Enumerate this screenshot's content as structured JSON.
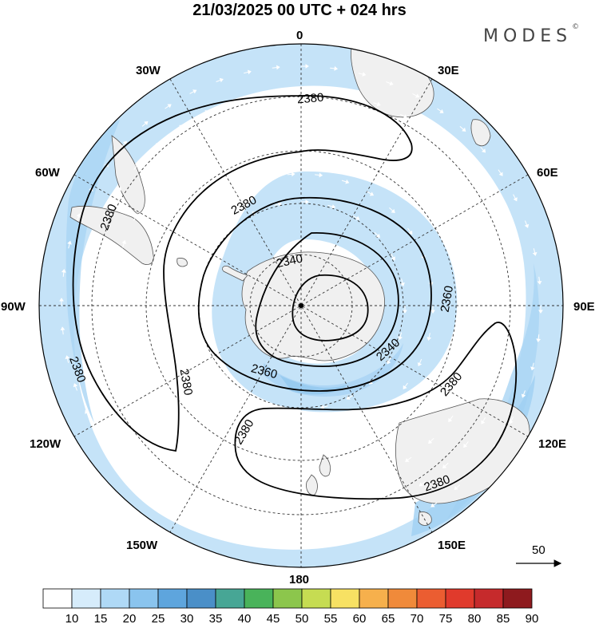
{
  "header": {
    "title": "21/03/2025  00 UTC  + 024 hrs",
    "brand": "MODES",
    "brand_mark": "©"
  },
  "map": {
    "projection": "south-polar-stereographic",
    "center": "South Pole",
    "longitude_labels": {
      "top": "0",
      "bottom": "180",
      "left": "90W",
      "right": "90E",
      "lon30w": "30W",
      "lon30e": "30E",
      "lon60w": "60W",
      "lon60e": "60E",
      "lon120w": "120W",
      "lon120e": "120E",
      "lon150w": "150W",
      "lon150e": "150E"
    },
    "contour_labels": [
      {
        "id": "c1",
        "text": "2380"
      },
      {
        "id": "c2",
        "text": "2380"
      },
      {
        "id": "c3",
        "text": "2380"
      },
      {
        "id": "c4",
        "text": "2380"
      },
      {
        "id": "c5",
        "text": "2380"
      },
      {
        "id": "c6",
        "text": "2380"
      },
      {
        "id": "c7",
        "text": "2380"
      },
      {
        "id": "c8",
        "text": "2380"
      },
      {
        "id": "c9",
        "text": "2360"
      },
      {
        "id": "c10",
        "text": "2360"
      },
      {
        "id": "c11",
        "text": "2340"
      },
      {
        "id": "c12",
        "text": "2340"
      }
    ],
    "reference_vector": "50",
    "colors": {
      "land": "#f0f0f0",
      "ocean": "#ffffff",
      "shade_10": "#ffffff",
      "shade_15": "#d4ebfa",
      "shade_20": "#a9d4f4",
      "shade_25": "#84c0ec"
    }
  },
  "colorbar": {
    "labels": [
      "10",
      "15",
      "20",
      "25",
      "30",
      "35",
      "40",
      "45",
      "50",
      "55",
      "60",
      "65",
      "70",
      "75",
      "80",
      "85",
      "90"
    ],
    "colors": [
      "#ffffff",
      "#d6ecfb",
      "#afd9f6",
      "#8ac4ee",
      "#5ea5dd",
      "#4a8fc8",
      "#47a695",
      "#49b35a",
      "#8cc64c",
      "#c6dc52",
      "#f7e163",
      "#f6b04c",
      "#f08a3a",
      "#eb5d31",
      "#e03a2c",
      "#c62a2c",
      "#8e1a1e"
    ]
  }
}
